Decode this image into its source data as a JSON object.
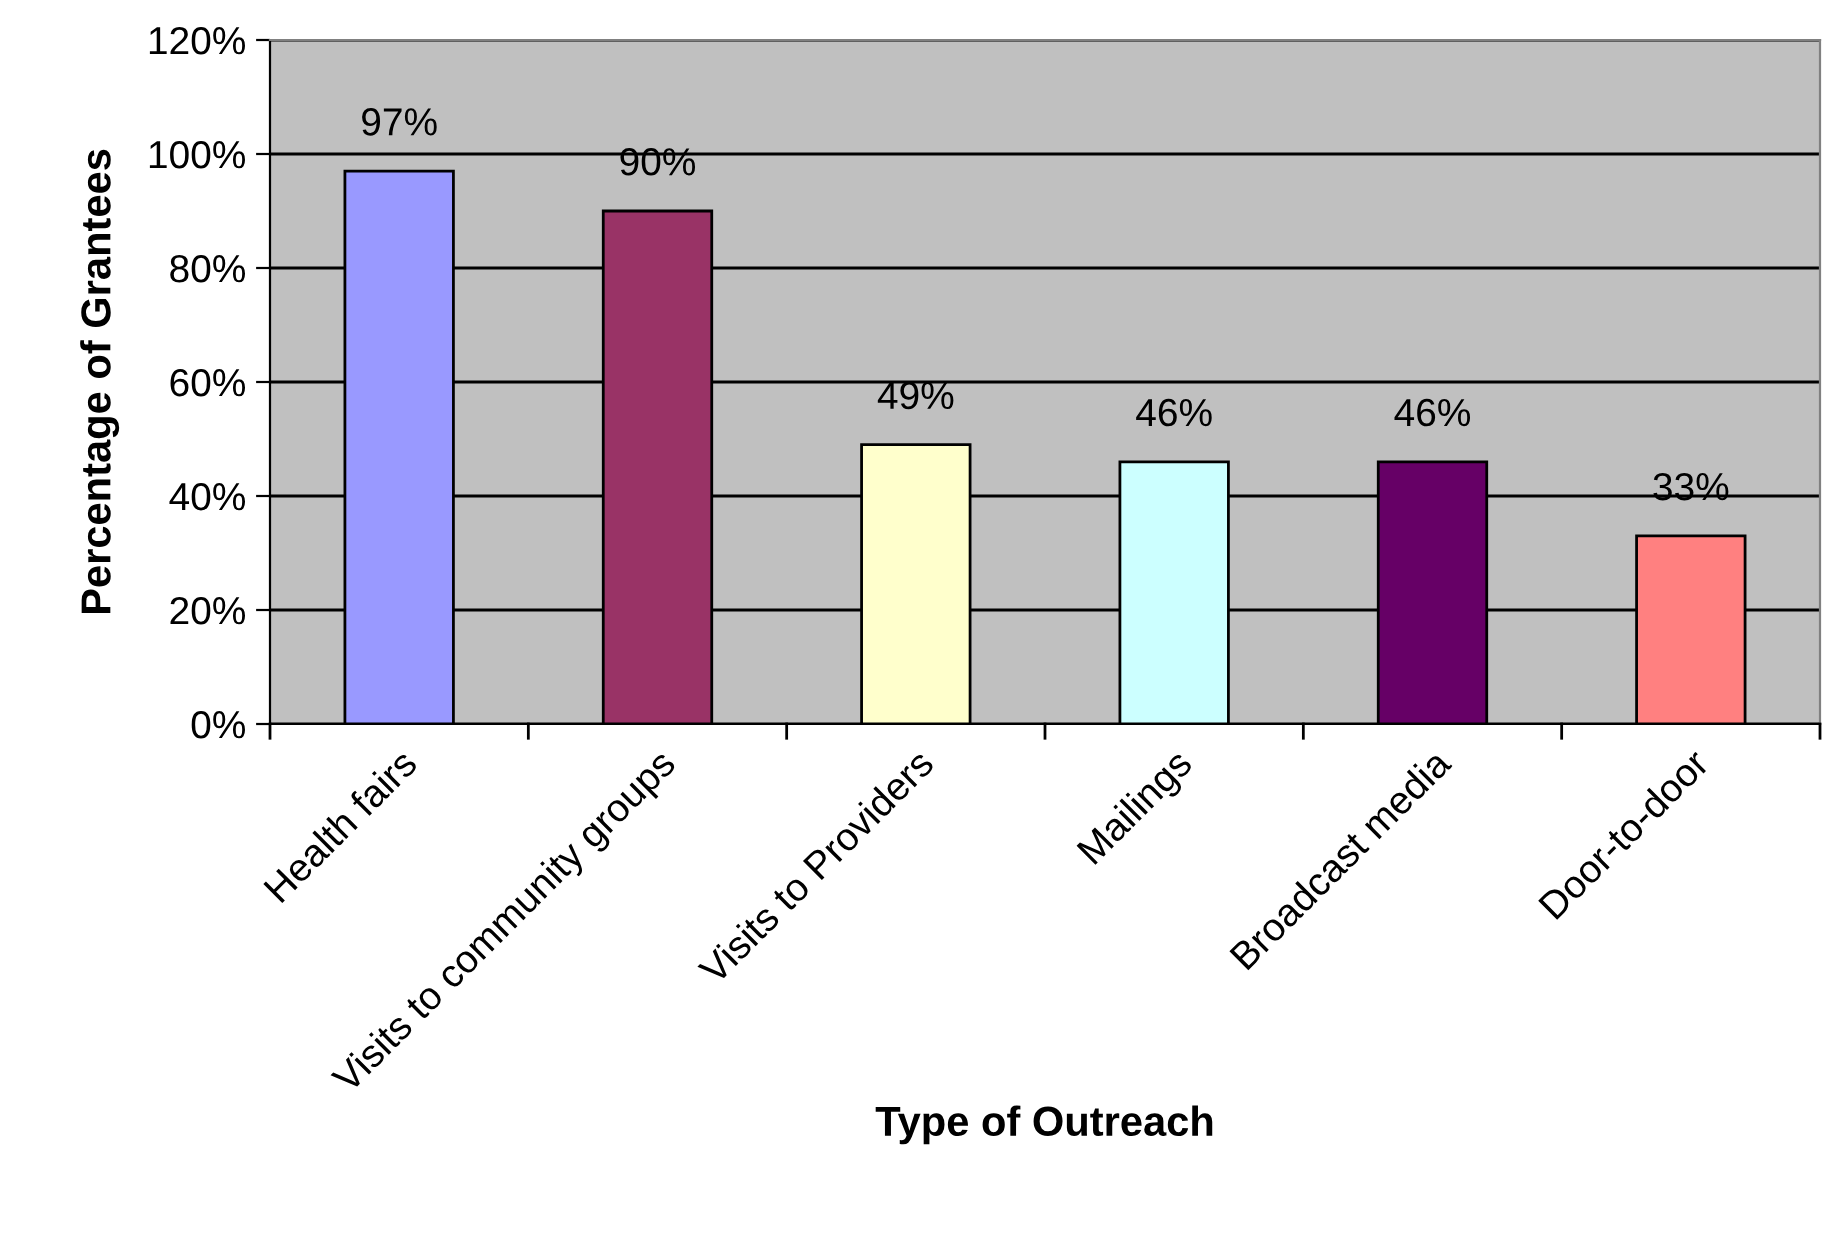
{
  "chart_data": {
    "type": "bar",
    "xlabel": "Type of Outreach",
    "ylabel": "Percentage of Grantees",
    "categories": [
      "Health fairs",
      "Visits to community groups",
      "Visits to Providers",
      "Mailings",
      "Broadcast media",
      "Door-to-door"
    ],
    "values": [
      97,
      90,
      49,
      46,
      46,
      33
    ],
    "colors": [
      "#9999ff",
      "#993366",
      "#ffffcc",
      "#ccffff",
      "#660066",
      "#ff8080"
    ],
    "value_labels": [
      "97%",
      "90%",
      "49%",
      "46%",
      "46%",
      "33%"
    ],
    "ylim": [
      0,
      120
    ],
    "yticks": [
      {
        "value": 0,
        "label": "0%"
      },
      {
        "value": 20,
        "label": "20%"
      },
      {
        "value": 40,
        "label": "40%"
      },
      {
        "value": 60,
        "label": "60%"
      },
      {
        "value": 80,
        "label": "80%"
      },
      {
        "value": 100,
        "label": "100%"
      },
      {
        "value": 120,
        "label": "120%"
      }
    ],
    "grid": "y"
  }
}
